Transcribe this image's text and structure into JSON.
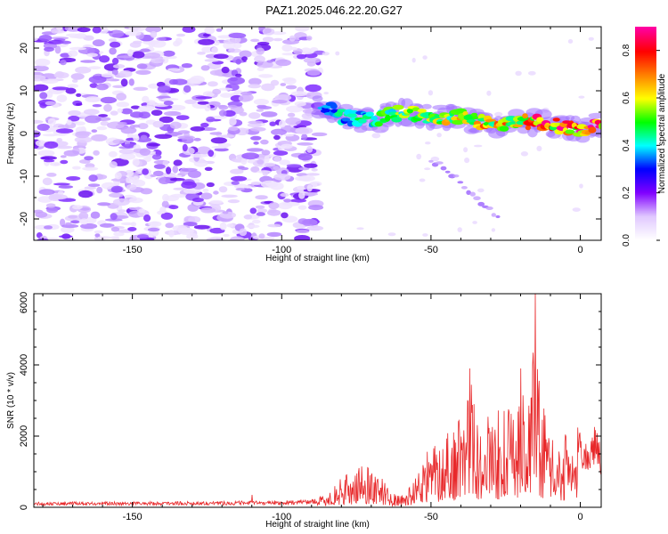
{
  "title": "PAZ1.2025.046.22.20.G27",
  "chart_data": [
    {
      "type": "heatmap",
      "title": "PAZ1.2025.046.22.20.G27",
      "xlabel": "Height of straight line (km)",
      "ylabel": "Frequency (Hz)",
      "xlim": [
        -183,
        7
      ],
      "ylim": [
        -25,
        25
      ],
      "xticks": [
        -150,
        -100,
        -50,
        0
      ],
      "yticks": [
        -20,
        -10,
        0,
        10,
        20
      ],
      "colorbar": {
        "label": "Normalized spectral amplitude",
        "range": [
          0,
          0.9
        ],
        "ticks": [
          "0.0",
          "0.2",
          "0.4",
          "0.6",
          "0.8"
        ],
        "colormap": [
          "#ffffff",
          "#e0c8ff",
          "#8000ff",
          "#0000ff",
          "#00ffff",
          "#00ff00",
          "#ffff00",
          "#ff8000",
          "#ff0000",
          "#ff00a0"
        ]
      },
      "features": [
        {
          "name": "noise",
          "x_range": [
            -183,
            -87
          ],
          "y_range": [
            -25,
            25
          ],
          "amplitude": 0.1
        },
        {
          "name": "main_signal",
          "points": [
            [
              -85,
              6
            ],
            [
              -80,
              4
            ],
            [
              -70,
              3
            ],
            [
              -60,
              5
            ],
            [
              -50,
              4
            ],
            [
              -40,
              4
            ],
            [
              -30,
              2
            ],
            [
              -20,
              3
            ],
            [
              -10,
              2
            ],
            [
              0,
              1
            ],
            [
              7,
              2
            ]
          ]
        },
        {
          "name": "branch_signal",
          "points": [
            [
              -50,
              -6
            ],
            [
              -42,
              -10
            ],
            [
              -35,
              -15
            ],
            [
              -27,
              -20
            ]
          ]
        }
      ]
    },
    {
      "type": "line",
      "xlabel": "Height of straight line (km)",
      "ylabel": "SNR (10 * v/v)",
      "xlim": [
        -183,
        7
      ],
      "ylim": [
        0,
        6000
      ],
      "xticks": [
        -150,
        -100,
        -50,
        0
      ],
      "yticks": [
        0,
        2000,
        4000,
        6000
      ],
      "color": "#e8282a",
      "envelope": [
        [
          -183,
          150
        ],
        [
          -140,
          160
        ],
        [
          -110,
          180
        ],
        [
          -96,
          200
        ],
        [
          -88,
          250
        ],
        [
          -84,
          450
        ],
        [
          -80,
          800
        ],
        [
          -76,
          1000
        ],
        [
          -72,
          1200
        ],
        [
          -68,
          1000
        ],
        [
          -64,
          500
        ],
        [
          -60,
          300
        ],
        [
          -56,
          700
        ],
        [
          -52,
          1500
        ],
        [
          -48,
          1800
        ],
        [
          -44,
          2200
        ],
        [
          -40,
          2500
        ],
        [
          -37,
          3900
        ],
        [
          -34,
          2300
        ],
        [
          -30,
          2600
        ],
        [
          -26,
          2800
        ],
        [
          -22,
          2600
        ],
        [
          -20,
          3900
        ],
        [
          -18,
          2600
        ],
        [
          -16,
          4000
        ],
        [
          -15,
          6000
        ],
        [
          -14,
          4000
        ],
        [
          -12,
          2600
        ],
        [
          -10,
          1800
        ],
        [
          -7,
          2000
        ],
        [
          -4,
          2000
        ],
        [
          -1,
          2200
        ],
        [
          1,
          1800
        ],
        [
          3,
          1700
        ],
        [
          5,
          2300
        ],
        [
          7,
          1500
        ]
      ],
      "spikes": [
        [
          -110,
          350
        ],
        [
          -37,
          3900
        ],
        [
          -20,
          3900
        ],
        [
          -16,
          4000
        ],
        [
          -15,
          6000
        ]
      ]
    }
  ]
}
